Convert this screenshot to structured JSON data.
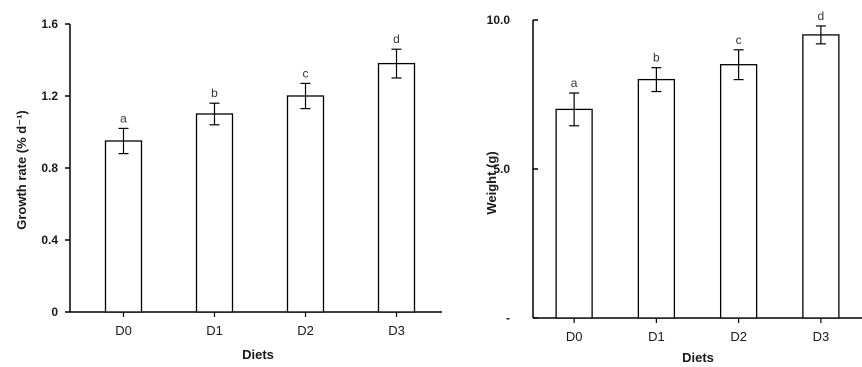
{
  "chart_data": [
    {
      "type": "bar",
      "categories": [
        "D0",
        "D1",
        "D2",
        "D3"
      ],
      "values": [
        0.95,
        1.1,
        1.2,
        1.38
      ],
      "errors": [
        0.07,
        0.06,
        0.07,
        0.08
      ],
      "letters": [
        "a",
        "b",
        "c",
        "d"
      ],
      "xlabel": "Diets",
      "ylabel": "Growth rate (% d⁻¹)",
      "ylim": [
        0,
        1.6
      ],
      "yticks": [
        "0",
        "0.4",
        "0.8",
        "1.2",
        "1.6"
      ],
      "ytick_values": [
        0,
        0.4,
        0.8,
        1.2,
        1.6
      ],
      "grid": false,
      "bar_fill": "#ffffff",
      "bar_stroke": "#000000"
    },
    {
      "type": "bar",
      "categories": [
        "D0",
        "D1",
        "D2",
        "D3"
      ],
      "values": [
        7.0,
        8.0,
        8.5,
        9.5
      ],
      "errors": [
        0.55,
        0.4,
        0.5,
        0.3
      ],
      "letters": [
        "a",
        "b",
        "c",
        "d"
      ],
      "xlabel": "Diets",
      "ylabel": "Weight (g)",
      "ylim": [
        0,
        10
      ],
      "yticks": [
        "-",
        "5.0",
        "10.0"
      ],
      "ytick_values": [
        0,
        5,
        10
      ],
      "grid": false,
      "bar_fill": "#ffffff",
      "bar_stroke": "#000000"
    }
  ]
}
